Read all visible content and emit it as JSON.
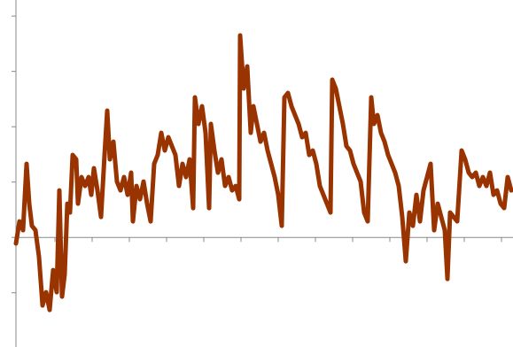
{
  "chart_data": {
    "type": "line",
    "x": [
      -2,
      2,
      6,
      10,
      13,
      16,
      20,
      24,
      28,
      32,
      36,
      40,
      44,
      47,
      50,
      53,
      56,
      59,
      62,
      66,
      68,
      72,
      76,
      80,
      83,
      86,
      90,
      94,
      98,
      101,
      104,
      108,
      112,
      116,
      120,
      124,
      128,
      130,
      134,
      138,
      142,
      146,
      150,
      154,
      158,
      162,
      166,
      170,
      174,
      178,
      182,
      186,
      190,
      194,
      198,
      200,
      204,
      208,
      212,
      216,
      218,
      222,
      226,
      230,
      234,
      238,
      242,
      246,
      250,
      251,
      255,
      259,
      263,
      266,
      270,
      274,
      278,
      282,
      286,
      290,
      294,
      298,
      301,
      305,
      309,
      313,
      317,
      321,
      325,
      329,
      333,
      337,
      341,
      345,
      349,
      353,
      355,
      359,
      363,
      367,
      371,
      375,
      379,
      383,
      387,
      391,
      395,
      399,
      402,
      406,
      410,
      414,
      418,
      422,
      426,
      430,
      434,
      438,
      442,
      446,
      450,
      454,
      458,
      462,
      466,
      470,
      474,
      478,
      482,
      485,
      488,
      492,
      496,
      501,
      505,
      509,
      513,
      517,
      521,
      525,
      529,
      533,
      537,
      541,
      545,
      549,
      553,
      557
    ],
    "series": [
      {
        "color": "#993300",
        "values": [
          -0.11,
          0.29,
          0.13,
          1.33,
          0.61,
          0.21,
          0.13,
          -0.35,
          -1.23,
          -0.99,
          -1.31,
          -0.59,
          -0.99,
          0.85,
          -1.07,
          -0.67,
          0.61,
          0.45,
          1.49,
          1.41,
          0.61,
          1.09,
          0.93,
          1.09,
          0.77,
          1.25,
          0.85,
          0.37,
          1.49,
          2.29,
          1.41,
          1.73,
          1.01,
          0.85,
          1.09,
          0.77,
          1.17,
          0.29,
          0.93,
          0.69,
          1.01,
          0.61,
          0.29,
          1.33,
          1.49,
          1.89,
          1.57,
          1.81,
          1.65,
          1.49,
          0.93,
          1.33,
          1.09,
          1.41,
          0.53,
          2.53,
          2.05,
          2.37,
          1.89,
          0.53,
          2.05,
          1.57,
          1.17,
          1.41,
          0.93,
          1.09,
          0.85,
          0.93,
          0.69,
          3.65,
          2.69,
          3.09,
          1.89,
          2.37,
          2.05,
          1.73,
          1.89,
          1.57,
          1.33,
          1.09,
          0.77,
          0.21,
          2.53,
          2.61,
          2.37,
          2.21,
          2.05,
          1.81,
          1.89,
          1.49,
          1.57,
          1.33,
          0.93,
          0.77,
          0.61,
          0.45,
          2.85,
          2.69,
          2.37,
          2.05,
          1.65,
          1.57,
          1.33,
          1.17,
          1.01,
          0.45,
          0.29,
          2.53,
          2.05,
          2.21,
          1.89,
          1.73,
          1.49,
          1.33,
          1.17,
          0.93,
          0.37,
          -0.43,
          0.45,
          0.21,
          0.77,
          0.29,
          0.85,
          1.09,
          1.33,
          0.13,
          0.61,
          0.37,
          0.13,
          -0.75,
          0.45,
          0.37,
          0.29,
          1.57,
          1.41,
          1.17,
          1.09,
          1.17,
          0.93,
          1.09,
          0.93,
          1.17,
          0.77,
          0.85,
          0.61,
          0.53,
          1.09,
          0.85
        ]
      }
    ],
    "xlim": [
      -2,
      559
    ],
    "xticks": [
      0,
      42,
      84,
      126,
      168,
      210,
      252,
      294,
      336,
      378,
      420,
      462,
      504,
      546
    ],
    "ylim": [
      -1.98,
      4.29
    ],
    "yticks": [
      -1,
      0,
      1,
      2,
      3,
      4
    ]
  }
}
